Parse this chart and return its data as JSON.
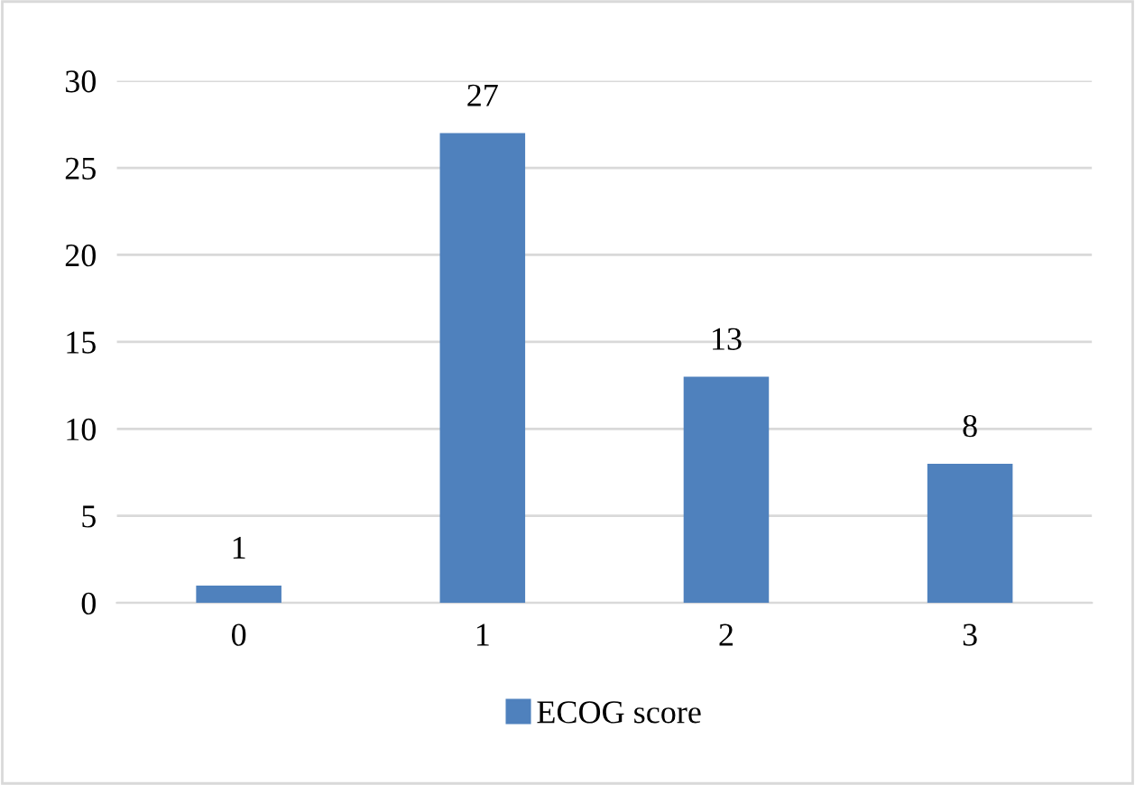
{
  "chart_data": {
    "type": "bar",
    "categories": [
      "0",
      "1",
      "2",
      "3"
    ],
    "series": [
      {
        "name": "ECOG score",
        "color": "#4f81bd",
        "values": [
          1,
          27,
          13,
          8
        ]
      }
    ],
    "ylim": [
      0,
      30
    ],
    "yticks": [
      0,
      5,
      10,
      15,
      20,
      25,
      30
    ],
    "grid": "y",
    "legend": "bottom",
    "data_labels": true
  }
}
